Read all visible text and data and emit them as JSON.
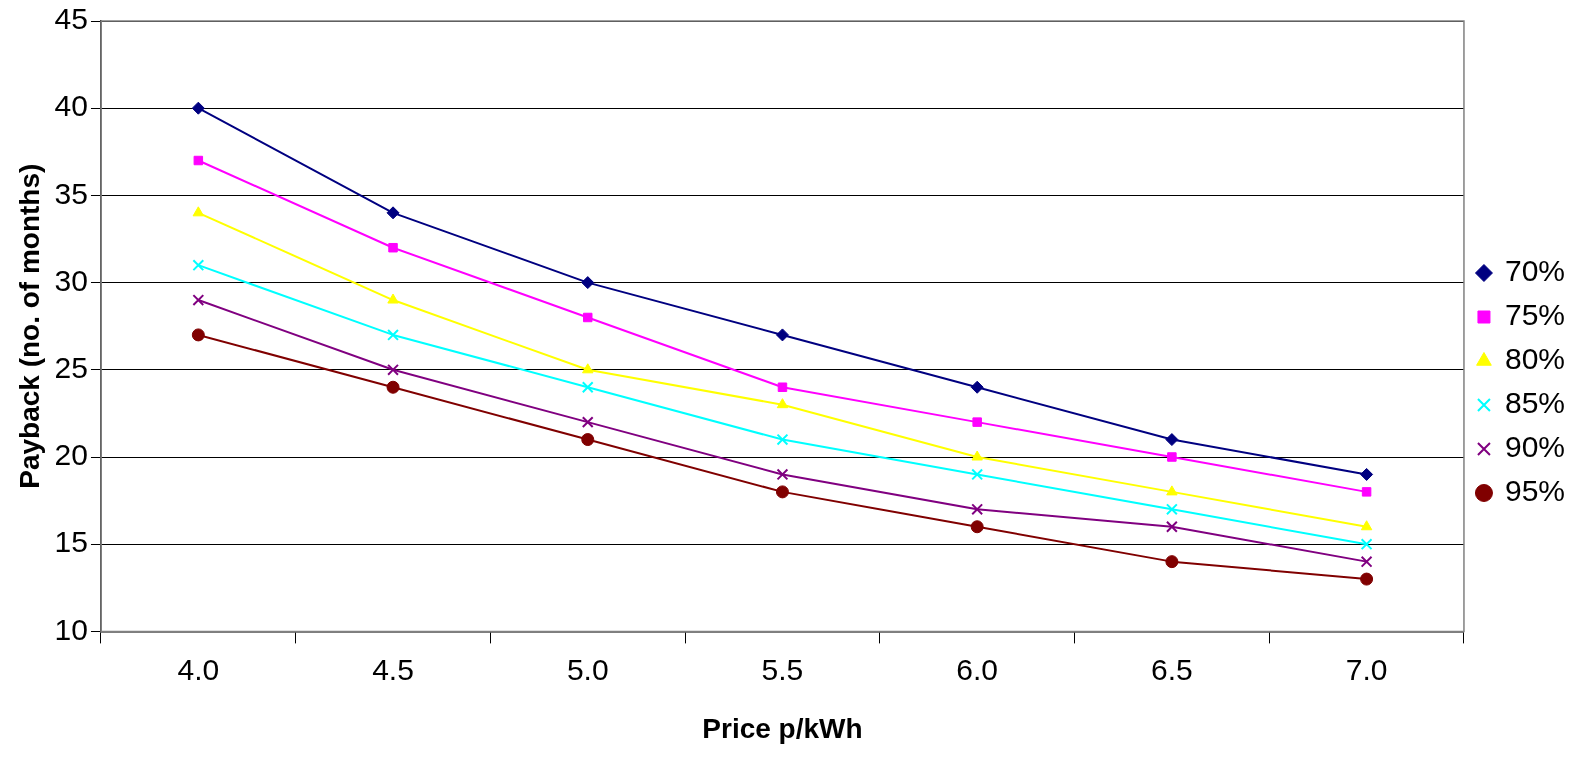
{
  "chart_data": {
    "type": "line",
    "xlabel": "Price p/kWh",
    "ylabel": "Payback (no. of months)",
    "categories": [
      "4.0",
      "4.5",
      "5.0",
      "5.5",
      "6.0",
      "6.5",
      "7.0"
    ],
    "series": [
      {
        "name": "70%",
        "color": "#000080",
        "marker": "diamond",
        "values": [
          40,
          34,
          30,
          27,
          24,
          21,
          19
        ]
      },
      {
        "name": "75%",
        "color": "#ff00ff",
        "marker": "square",
        "values": [
          37,
          32,
          28,
          24,
          22,
          20,
          18
        ]
      },
      {
        "name": "80%",
        "color": "#ffff00",
        "marker": "triangle",
        "values": [
          34,
          29,
          25,
          23,
          20,
          18,
          16
        ]
      },
      {
        "name": "85%",
        "color": "#00ffff",
        "marker": "cross",
        "values": [
          31,
          27,
          24,
          21,
          19,
          17,
          15
        ]
      },
      {
        "name": "90%",
        "color": "#800080",
        "marker": "cross",
        "values": [
          29,
          25,
          22,
          19,
          17,
          16,
          14
        ]
      },
      {
        "name": "95%",
        "color": "#800000",
        "marker": "circle",
        "values": [
          27,
          24,
          21,
          18,
          16,
          14,
          13
        ]
      }
    ],
    "ylim": [
      10,
      45
    ],
    "yticks": [
      10,
      15,
      20,
      25,
      30,
      35,
      40,
      45
    ],
    "grid": "y",
    "legend": "right",
    "line_style": "solid"
  }
}
